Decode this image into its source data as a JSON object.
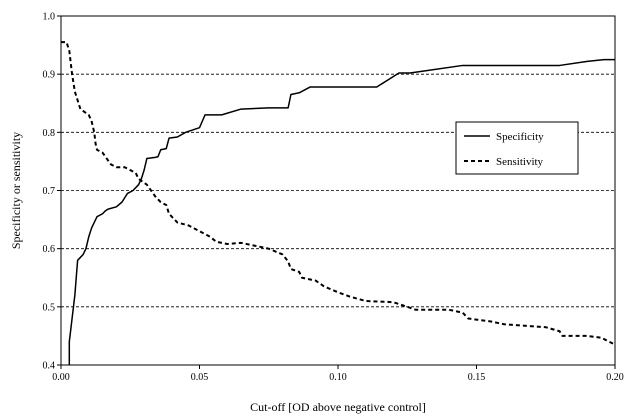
{
  "chart_data": {
    "type": "line",
    "xlabel": "Cut-off [OD above negative control]",
    "ylabel": "Specificity or sensitivity",
    "xlim": [
      0.0,
      0.2
    ],
    "ylim": [
      0.4,
      1.0
    ],
    "x_ticks": [
      "0.00",
      "0.05",
      "0.10",
      "0.15",
      "0.20"
    ],
    "y_ticks": [
      "0.4",
      "0.5",
      "0.6",
      "0.7",
      "0.8",
      "0.9",
      "1.0"
    ],
    "grid": "horizontal dashed",
    "legend_position": "right",
    "series": [
      {
        "name": "Specificity",
        "style": "solid",
        "color": "#000000",
        "points": [
          [
            0.003,
            0.4
          ],
          [
            0.003,
            0.44
          ],
          [
            0.0035,
            0.46
          ],
          [
            0.004,
            0.48
          ],
          [
            0.0045,
            0.5
          ],
          [
            0.005,
            0.52
          ],
          [
            0.0055,
            0.55
          ],
          [
            0.006,
            0.58
          ],
          [
            0.008,
            0.59
          ],
          [
            0.009,
            0.6
          ],
          [
            0.01,
            0.62
          ],
          [
            0.011,
            0.635
          ],
          [
            0.012,
            0.645
          ],
          [
            0.013,
            0.655
          ],
          [
            0.015,
            0.66
          ],
          [
            0.016,
            0.665
          ],
          [
            0.017,
            0.668
          ],
          [
            0.02,
            0.672
          ],
          [
            0.022,
            0.68
          ],
          [
            0.024,
            0.695
          ],
          [
            0.026,
            0.7
          ],
          [
            0.028,
            0.71
          ],
          [
            0.029,
            0.72
          ],
          [
            0.03,
            0.735
          ],
          [
            0.031,
            0.755
          ],
          [
            0.034,
            0.757
          ],
          [
            0.035,
            0.758
          ],
          [
            0.036,
            0.77
          ],
          [
            0.038,
            0.772
          ],
          [
            0.039,
            0.79
          ],
          [
            0.042,
            0.792
          ],
          [
            0.045,
            0.8
          ],
          [
            0.05,
            0.808
          ],
          [
            0.052,
            0.83
          ],
          [
            0.058,
            0.83
          ],
          [
            0.065,
            0.84
          ],
          [
            0.075,
            0.842
          ],
          [
            0.082,
            0.842
          ],
          [
            0.083,
            0.865
          ],
          [
            0.086,
            0.868
          ],
          [
            0.09,
            0.878
          ],
          [
            0.1,
            0.878
          ],
          [
            0.114,
            0.878
          ],
          [
            0.118,
            0.89
          ],
          [
            0.122,
            0.902
          ],
          [
            0.126,
            0.902
          ],
          [
            0.132,
            0.906
          ],
          [
            0.145,
            0.915
          ],
          [
            0.18,
            0.915
          ],
          [
            0.19,
            0.922
          ],
          [
            0.196,
            0.925
          ],
          [
            0.2,
            0.925
          ]
        ]
      },
      {
        "name": "Sensitivity",
        "style": "dashed",
        "color": "#000000",
        "points": [
          [
            0.0,
            0.955
          ],
          [
            0.002,
            0.955
          ],
          [
            0.003,
            0.94
          ],
          [
            0.0035,
            0.92
          ],
          [
            0.004,
            0.9
          ],
          [
            0.0045,
            0.885
          ],
          [
            0.005,
            0.87
          ],
          [
            0.006,
            0.855
          ],
          [
            0.007,
            0.84
          ],
          [
            0.01,
            0.83
          ],
          [
            0.011,
            0.82
          ],
          [
            0.012,
            0.8
          ],
          [
            0.0125,
            0.78
          ],
          [
            0.013,
            0.77
          ],
          [
            0.015,
            0.765
          ],
          [
            0.018,
            0.745
          ],
          [
            0.02,
            0.74
          ],
          [
            0.023,
            0.74
          ],
          [
            0.025,
            0.735
          ],
          [
            0.027,
            0.73
          ],
          [
            0.028,
            0.72
          ],
          [
            0.031,
            0.71
          ],
          [
            0.034,
            0.69
          ],
          [
            0.036,
            0.68
          ],
          [
            0.038,
            0.675
          ],
          [
            0.039,
            0.66
          ],
          [
            0.04,
            0.655
          ],
          [
            0.042,
            0.645
          ],
          [
            0.046,
            0.64
          ],
          [
            0.05,
            0.63
          ],
          [
            0.052,
            0.625
          ],
          [
            0.054,
            0.62
          ],
          [
            0.056,
            0.612
          ],
          [
            0.06,
            0.608
          ],
          [
            0.065,
            0.61
          ],
          [
            0.07,
            0.605
          ],
          [
            0.075,
            0.6
          ],
          [
            0.08,
            0.59
          ],
          [
            0.082,
            0.578
          ],
          [
            0.083,
            0.565
          ],
          [
            0.086,
            0.56
          ],
          [
            0.087,
            0.55
          ],
          [
            0.092,
            0.545
          ],
          [
            0.095,
            0.535
          ],
          [
            0.1,
            0.525
          ],
          [
            0.104,
            0.518
          ],
          [
            0.11,
            0.51
          ],
          [
            0.12,
            0.508
          ],
          [
            0.125,
            0.5
          ],
          [
            0.128,
            0.495
          ],
          [
            0.132,
            0.495
          ],
          [
            0.14,
            0.495
          ],
          [
            0.145,
            0.49
          ],
          [
            0.147,
            0.48
          ],
          [
            0.15,
            0.478
          ],
          [
            0.155,
            0.475
          ],
          [
            0.16,
            0.47
          ],
          [
            0.175,
            0.465
          ],
          [
            0.18,
            0.458
          ],
          [
            0.181,
            0.45
          ],
          [
            0.19,
            0.45
          ],
          [
            0.195,
            0.447
          ],
          [
            0.2,
            0.435
          ]
        ]
      }
    ]
  }
}
